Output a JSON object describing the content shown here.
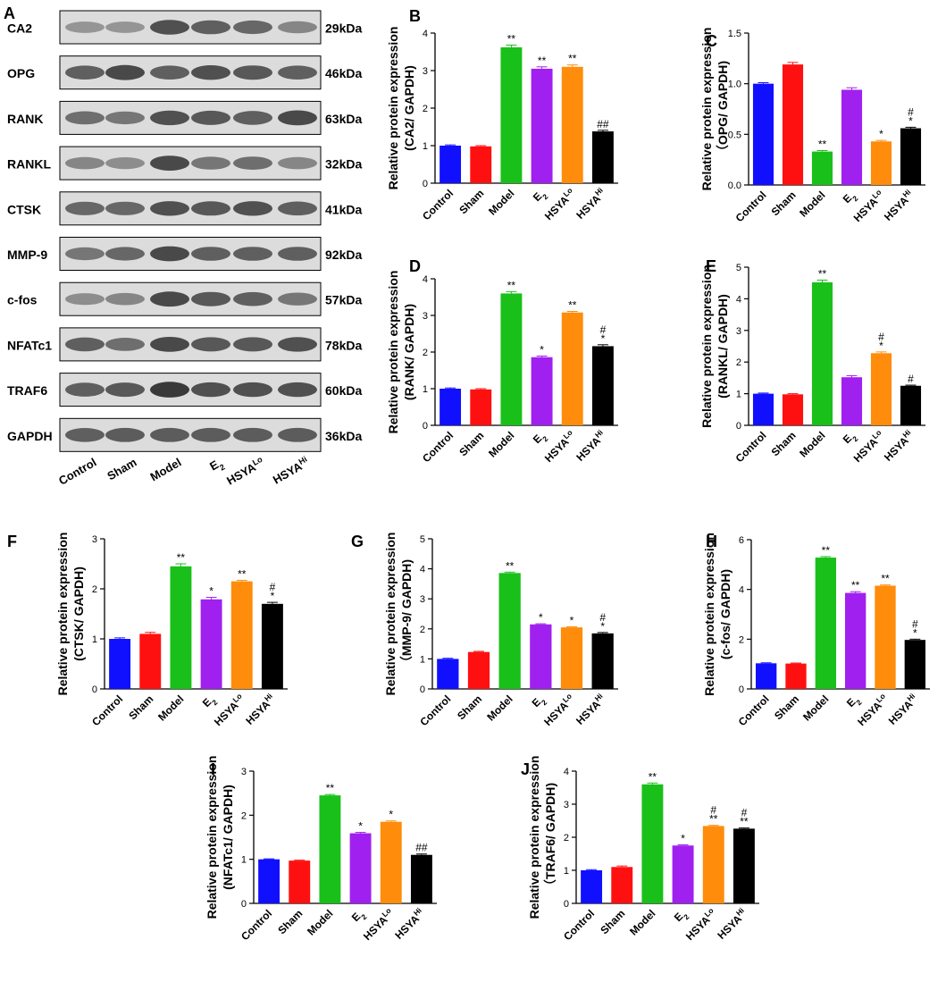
{
  "colors": {
    "control": "#1010ff",
    "sham": "#ff1010",
    "model": "#19c019",
    "e2": "#a020f0",
    "hsya_lo": "#ff8c0a",
    "hsya_hi": "#000000"
  },
  "blot": {
    "panel": "A",
    "proteins": [
      "CA2",
      "OPG",
      "RANK",
      "RANKL",
      "CTSK",
      "MMP-9",
      "c-fos",
      "NFATc1",
      "TRAF6",
      "GAPDH"
    ],
    "sizes": [
      "29kDa",
      "46kDa",
      "63kDa",
      "32kDa",
      "41kDa",
      "92kDa",
      "57kDa",
      "78kDa",
      "60kDa",
      "36kDa"
    ],
    "lanes": [
      "Control",
      "Sham",
      "Model",
      "E2",
      "HSYA Lo",
      "HSYA Hi"
    ],
    "lane_labels": [
      {
        "main": "Control",
        "sub": "",
        "sup": ""
      },
      {
        "main": "Sham",
        "sub": "",
        "sup": ""
      },
      {
        "main": "Model",
        "sub": "",
        "sup": ""
      },
      {
        "main": "E",
        "sub": "2",
        "sup": ""
      },
      {
        "main": "HSYA",
        "sub": "",
        "sup": "Lo"
      },
      {
        "main": "HSYA",
        "sub": "",
        "sup": "Hi"
      }
    ]
  },
  "bar_categories": [
    {
      "main": "Control",
      "sub": "",
      "sup": ""
    },
    {
      "main": "Sham",
      "sub": "",
      "sup": ""
    },
    {
      "main": "Model",
      "sub": "",
      "sup": ""
    },
    {
      "main": "E",
      "sub": "2",
      "sup": ""
    },
    {
      "main": "HSYA",
      "sub": "",
      "sup": "Lo"
    },
    {
      "main": "HSYA",
      "sub": "",
      "sup": "Hi"
    }
  ],
  "ylabel_main": "Relative protein expression",
  "chart_data": [
    {
      "type": "bar",
      "panel": "B",
      "categories": [
        "Control",
        "Sham",
        "Model",
        "E2",
        "HSYA Lo",
        "HSYA Hi"
      ],
      "ylabel": [
        "Relative protein expression",
        "(CA2/ GAPDH)"
      ],
      "ylim": [
        0,
        4
      ],
      "yticks": [
        "0",
        "1",
        "2",
        "3",
        "4"
      ],
      "values": [
        1.0,
        0.98,
        3.62,
        3.05,
        3.1,
        1.38
      ],
      "errors": [
        0.02,
        0.02,
        0.06,
        0.05,
        0.05,
        0.03
      ],
      "annotations": [
        [
          "",
          ""
        ],
        [
          "",
          ""
        ],
        [
          "**",
          ""
        ],
        [
          "**",
          ""
        ],
        [
          "**",
          ""
        ],
        [
          "##",
          ""
        ]
      ]
    },
    {
      "type": "bar",
      "panel": "C",
      "categories": [
        "Control",
        "Sham",
        "Model",
        "E2",
        "HSYA Lo",
        "HSYA Hi"
      ],
      "ylabel": [
        "Relative protein expression",
        "（OPG/ GAPDH)"
      ],
      "ylim": [
        0,
        1.5
      ],
      "yticks": [
        "0.0",
        "0.5",
        "1.0",
        "1.5"
      ],
      "values": [
        1.0,
        1.19,
        0.33,
        0.94,
        0.43,
        0.56
      ],
      "errors": [
        0.01,
        0.02,
        0.01,
        0.02,
        0.01,
        0.01
      ],
      "annotations": [
        [
          "",
          ""
        ],
        [
          "",
          ""
        ],
        [
          "**",
          ""
        ],
        [
          "",
          ""
        ],
        [
          "*",
          ""
        ],
        [
          "#",
          "*"
        ]
      ]
    },
    {
      "type": "bar",
      "panel": "D",
      "categories": [
        "Control",
        "Sham",
        "Model",
        "E2",
        "HSYA Lo",
        "HSYA Hi"
      ],
      "ylabel": [
        "Relative protein expression",
        "(RANK/ GAPDH)"
      ],
      "ylim": [
        0,
        4
      ],
      "yticks": [
        "0",
        "1",
        "2",
        "3",
        "4"
      ],
      "values": [
        1.0,
        0.98,
        3.6,
        1.86,
        3.08,
        2.16
      ],
      "errors": [
        0.02,
        0.02,
        0.05,
        0.03,
        0.03,
        0.04
      ],
      "annotations": [
        [
          "",
          ""
        ],
        [
          "",
          ""
        ],
        [
          "**",
          ""
        ],
        [
          "*",
          ""
        ],
        [
          "**",
          ""
        ],
        [
          "#",
          "*"
        ]
      ]
    },
    {
      "type": "bar",
      "panel": "E",
      "categories": [
        "Control",
        "Sham",
        "Model",
        "E2",
        "HSYA Lo",
        "HSYA Hi"
      ],
      "ylabel": [
        "Relative protein expression",
        "(RANKL/ GAPDH)"
      ],
      "ylim": [
        0,
        5
      ],
      "yticks": [
        "0",
        "1",
        "2",
        "3",
        "4",
        "5"
      ],
      "values": [
        1.0,
        0.98,
        4.52,
        1.52,
        2.28,
        1.25
      ],
      "errors": [
        0.02,
        0.02,
        0.07,
        0.05,
        0.04,
        0.02
      ],
      "annotations": [
        [
          "",
          ""
        ],
        [
          "",
          ""
        ],
        [
          "**",
          ""
        ],
        [
          "",
          ""
        ],
        [
          "#",
          "*"
        ],
        [
          "#",
          ""
        ]
      ]
    },
    {
      "type": "bar",
      "panel": "F",
      "categories": [
        "Control",
        "Sham",
        "Model",
        "E2",
        "HSYA Lo",
        "HSYA Hi"
      ],
      "ylabel": [
        "Relative protein expression",
        "(CTSK/ GAPDH)"
      ],
      "ylim": [
        0,
        3
      ],
      "yticks": [
        "0",
        "1",
        "2",
        "3"
      ],
      "values": [
        1.0,
        1.1,
        2.45,
        1.79,
        2.15,
        1.7
      ],
      "errors": [
        0.02,
        0.03,
        0.05,
        0.04,
        0.02,
        0.03
      ],
      "annotations": [
        [
          "",
          ""
        ],
        [
          "",
          ""
        ],
        [
          "**",
          ""
        ],
        [
          "*",
          ""
        ],
        [
          "**",
          ""
        ],
        [
          "#",
          "*"
        ]
      ]
    },
    {
      "type": "bar",
      "panel": "G",
      "categories": [
        "Control",
        "Sham",
        "Model",
        "E2",
        "HSYA Lo",
        "HSYA Hi"
      ],
      "ylabel": [
        "Relative protein expression",
        "（MMP-9/ GAPDH)"
      ],
      "ylim": [
        0,
        5
      ],
      "yticks": [
        "0",
        "1",
        "2",
        "3",
        "4",
        "5"
      ],
      "values": [
        1.0,
        1.23,
        3.86,
        2.15,
        2.05,
        1.85
      ],
      "errors": [
        0.02,
        0.02,
        0.03,
        0.02,
        0.02,
        0.03
      ],
      "annotations": [
        [
          "",
          ""
        ],
        [
          "",
          ""
        ],
        [
          "**",
          ""
        ],
        [
          "*",
          ""
        ],
        [
          "*",
          ""
        ],
        [
          "#",
          "*"
        ]
      ]
    },
    {
      "type": "bar",
      "panel": "H",
      "categories": [
        "Control",
        "Sham",
        "Model",
        "E2",
        "HSYA Lo",
        "HSYA Hi"
      ],
      "ylabel": [
        "Relative protein expression",
        "(c-fos/ GAPDH)"
      ],
      "ylim": [
        0,
        6
      ],
      "yticks": [
        "0",
        "2",
        "4",
        "6"
      ],
      "values": [
        1.03,
        1.02,
        5.28,
        3.86,
        4.15,
        1.97
      ],
      "errors": [
        0.02,
        0.02,
        0.04,
        0.05,
        0.03,
        0.03
      ],
      "annotations": [
        [
          "",
          ""
        ],
        [
          "",
          ""
        ],
        [
          "**",
          ""
        ],
        [
          "**",
          ""
        ],
        [
          "**",
          ""
        ],
        [
          "#",
          "*"
        ]
      ]
    },
    {
      "type": "bar",
      "panel": "I",
      "categories": [
        "Control",
        "Sham",
        "Model",
        "E2",
        "HSYA Lo",
        "HSYA Hi"
      ],
      "ylabel": [
        "Relative protein expression",
        "(NFATc1/ GAPDH)"
      ],
      "ylim": [
        0,
        3
      ],
      "yticks": [
        "0",
        "1",
        "2",
        "3"
      ],
      "values": [
        1.0,
        0.97,
        2.45,
        1.59,
        1.85,
        1.1
      ],
      "errors": [
        0.01,
        0.01,
        0.02,
        0.02,
        0.02,
        0.02
      ],
      "annotations": [
        [
          "",
          ""
        ],
        [
          "",
          ""
        ],
        [
          "**",
          ""
        ],
        [
          "*",
          ""
        ],
        [
          "*",
          ""
        ],
        [
          "##",
          ""
        ]
      ]
    },
    {
      "type": "bar",
      "panel": "J",
      "categories": [
        "Control",
        "Sham",
        "Model",
        "E2",
        "HSYA Lo",
        "HSYA Hi"
      ],
      "ylabel": [
        "Relative protein expression",
        "（TRAF6/ GAPDH)"
      ],
      "ylim": [
        0,
        4
      ],
      "yticks": [
        "0",
        "1",
        "2",
        "3",
        "4"
      ],
      "values": [
        1.0,
        1.1,
        3.6,
        1.75,
        2.34,
        2.26
      ],
      "errors": [
        0.02,
        0.03,
        0.04,
        0.02,
        0.02,
        0.02
      ],
      "annotations": [
        [
          "",
          ""
        ],
        [
          "",
          ""
        ],
        [
          "**",
          ""
        ],
        [
          "*",
          ""
        ],
        [
          "#",
          "**"
        ],
        [
          "#",
          "**"
        ]
      ]
    }
  ]
}
